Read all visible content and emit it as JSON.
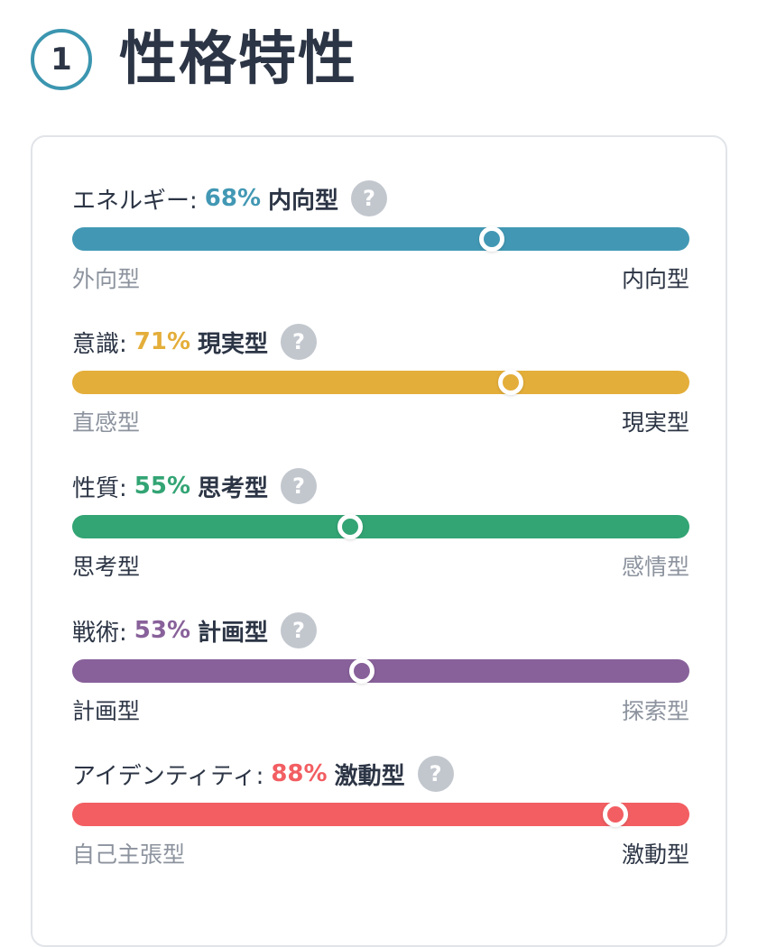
{
  "section": {
    "number": "1",
    "title": "性格特性"
  },
  "traits": [
    {
      "name": "エネルギー:",
      "percent": "68%",
      "value": 68,
      "type": "内向型",
      "color": "#4298b4",
      "left": "外向型",
      "right": "内向型",
      "active_side": "right"
    },
    {
      "name": "意識:",
      "percent": "71%",
      "value": 71,
      "type": "現実型",
      "color": "#e4ae3a",
      "left": "直感型",
      "right": "現実型",
      "active_side": "right"
    },
    {
      "name": "性質:",
      "percent": "55%",
      "value": 45,
      "type": "思考型",
      "color": "#33a474",
      "left": "思考型",
      "right": "感情型",
      "active_side": "left"
    },
    {
      "name": "戦術:",
      "percent": "53%",
      "value": 47,
      "type": "計画型",
      "color": "#88619a",
      "left": "計画型",
      "right": "探索型",
      "active_side": "left"
    },
    {
      "name": "アイデンティティ:",
      "percent": "88%",
      "value": 88,
      "type": "激動型",
      "color": "#f25e62",
      "left": "自己主張型",
      "right": "激動型",
      "active_side": "right"
    }
  ],
  "help_icon": {
    "glyph": "?"
  }
}
